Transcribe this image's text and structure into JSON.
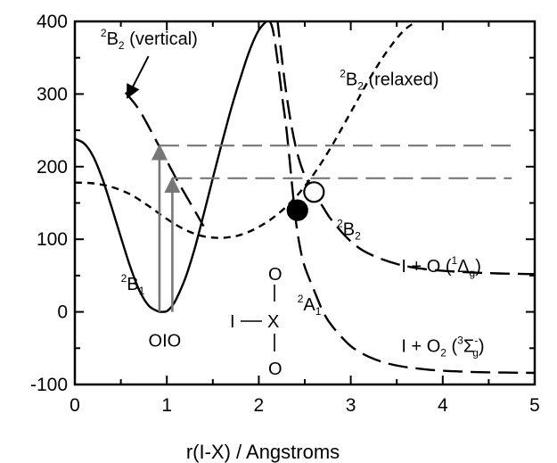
{
  "chart_data": {
    "type": "line",
    "title": "",
    "xlabel": "r(I-X) / Angstroms",
    "ylabel": "",
    "xlim": [
      0,
      5
    ],
    "ylim": [
      -100,
      400
    ],
    "x_ticks": [
      "0",
      "1",
      "2",
      "3",
      "4",
      "5"
    ],
    "y_ticks": [
      "-100",
      "0",
      "100",
      "200",
      "300",
      "400"
    ],
    "grid": false,
    "series": [
      {
        "key": "2B1",
        "style": "solid",
        "color": "#000000",
        "x": [
          0,
          0.1,
          0.2,
          0.3,
          0.4,
          0.5,
          0.6,
          0.7,
          0.8,
          0.9,
          0.95,
          1.0,
          1.05,
          1.1,
          1.2,
          1.3,
          1.4,
          1.5,
          1.6,
          1.7,
          1.8,
          1.9,
          2.0,
          2.1,
          2.15
        ],
        "y": [
          238,
          232,
          214,
          183,
          144,
          103,
          63,
          30,
          9,
          1,
          0,
          1,
          7,
          17,
          46,
          86,
          134,
          184,
          233,
          280,
          322,
          360,
          388,
          402,
          405
        ]
      },
      {
        "key": "2B2_relaxed",
        "style": "short-dash",
        "color": "#000000",
        "x": [
          0,
          0.2,
          0.4,
          0.6,
          0.8,
          1.0,
          1.2,
          1.4,
          1.6,
          1.8,
          2.0,
          2.2,
          2.4,
          2.6,
          2.8,
          3.0,
          3.2,
          3.4,
          3.6,
          3.8
        ],
        "y": [
          178,
          177,
          172,
          162,
          146,
          128,
          113,
          104,
          102,
          106,
          117,
          134,
          158,
          190,
          230,
          275,
          320,
          360,
          390,
          405
        ]
      },
      {
        "key": "2B2_vertical",
        "style": "long-dash",
        "color": "#000000",
        "x": [
          0.55,
          0.7,
          0.9,
          1.1,
          1.3,
          1.4
        ],
        "y": [
          302,
          278,
          232,
          184,
          140,
          118
        ]
      },
      {
        "key": "2B2_dissociative",
        "style": "long-dash",
        "color": "#000000",
        "x": [
          2.2,
          2.25,
          2.3,
          2.35,
          2.4,
          2.45,
          2.5,
          2.6,
          2.7,
          2.8,
          3.0,
          3.2,
          3.5,
          3.8,
          4.2,
          4.6,
          5.0
        ],
        "y": [
          405,
          350,
          300,
          260,
          228,
          205,
          188,
          165,
          144,
          125,
          97,
          80,
          66,
          59,
          55,
          53,
          52
        ]
      },
      {
        "key": "2A1",
        "style": "long-dash",
        "color": "#000000",
        "x": [
          2.1,
          2.15,
          2.2,
          2.25,
          2.3,
          2.35,
          2.4,
          2.45,
          2.5,
          2.6,
          2.7,
          2.8,
          3.0,
          3.2,
          3.4,
          3.6,
          3.8,
          4.0,
          4.4,
          5.0
        ],
        "y": [
          405,
          390,
          350,
          300,
          252,
          190,
          128,
          88,
          62,
          30,
          0,
          -20,
          -47,
          -62,
          -71,
          -76,
          -79,
          -81,
          -83,
          -84
        ]
      },
      {
        "key": "level_upper",
        "style": "long-dash",
        "color": "#777777",
        "x": [
          0.92,
          4.75
        ],
        "y": [
          229,
          229
        ]
      },
      {
        "key": "level_lower",
        "style": "long-dash",
        "color": "#777777",
        "x": [
          1.06,
          4.75
        ],
        "y": [
          184,
          184
        ]
      }
    ],
    "arrows": [
      {
        "key": "excitation_1",
        "x": 0.92,
        "y_from": 0,
        "y_to": 229,
        "color": "#777777"
      },
      {
        "key": "excitation_2",
        "x": 1.06,
        "y_from": 0,
        "y_to": 184,
        "color": "#777777"
      },
      {
        "key": "label_pointer",
        "x_from": 0.8,
        "y_from": 352,
        "x_to": 0.57,
        "y_to": 295,
        "color": "#000000"
      }
    ],
    "markers": [
      {
        "key": "crossing_filled",
        "x": 2.42,
        "y": 140,
        "fill": "#000000"
      },
      {
        "key": "crossing_open",
        "x": 2.6,
        "y": 165,
        "fill": "#ffffff"
      }
    ],
    "annotations": {
      "b2_vertical": {
        "sup": "2",
        "main": "B",
        "sub": "2",
        "tail": " (vertical)",
        "x": 0.28,
        "y": 368
      },
      "b2_relaxed": {
        "sup": "2",
        "main": "B",
        "sub": "2",
        "tail": " (relaxed)",
        "x": 2.88,
        "y": 312
      },
      "b1": {
        "sup": "2",
        "main": "B",
        "sub": "1",
        "x": 0.5,
        "y": 30
      },
      "b2_exit": {
        "sup": "2",
        "main": "B",
        "sub": "2",
        "x": 2.85,
        "y": 106
      },
      "a1": {
        "sup": "2",
        "main": "A",
        "sub": "1",
        "x": 2.42,
        "y": 2
      },
      "oio": {
        "text": "OIO",
        "x": 0.8,
        "y": -48
      },
      "i_plus_o": {
        "text": "I + O  (",
        "sup": "1",
        "greek": "Δ",
        "sub": "g",
        "close": ")",
        "x": 3.55,
        "y": 55
      },
      "i_plus_o2": {
        "text": "I + O",
        "sub2": "2",
        "open": " (",
        "sup": "3",
        "greek": "Σ",
        "sup2": "-",
        "sub": "g",
        "close": ")",
        "x": 3.55,
        "y": -55
      },
      "ixo": {
        "o_top": "O",
        "i": "I",
        "x_atom": "X",
        "o_bottom": "O"
      }
    }
  }
}
